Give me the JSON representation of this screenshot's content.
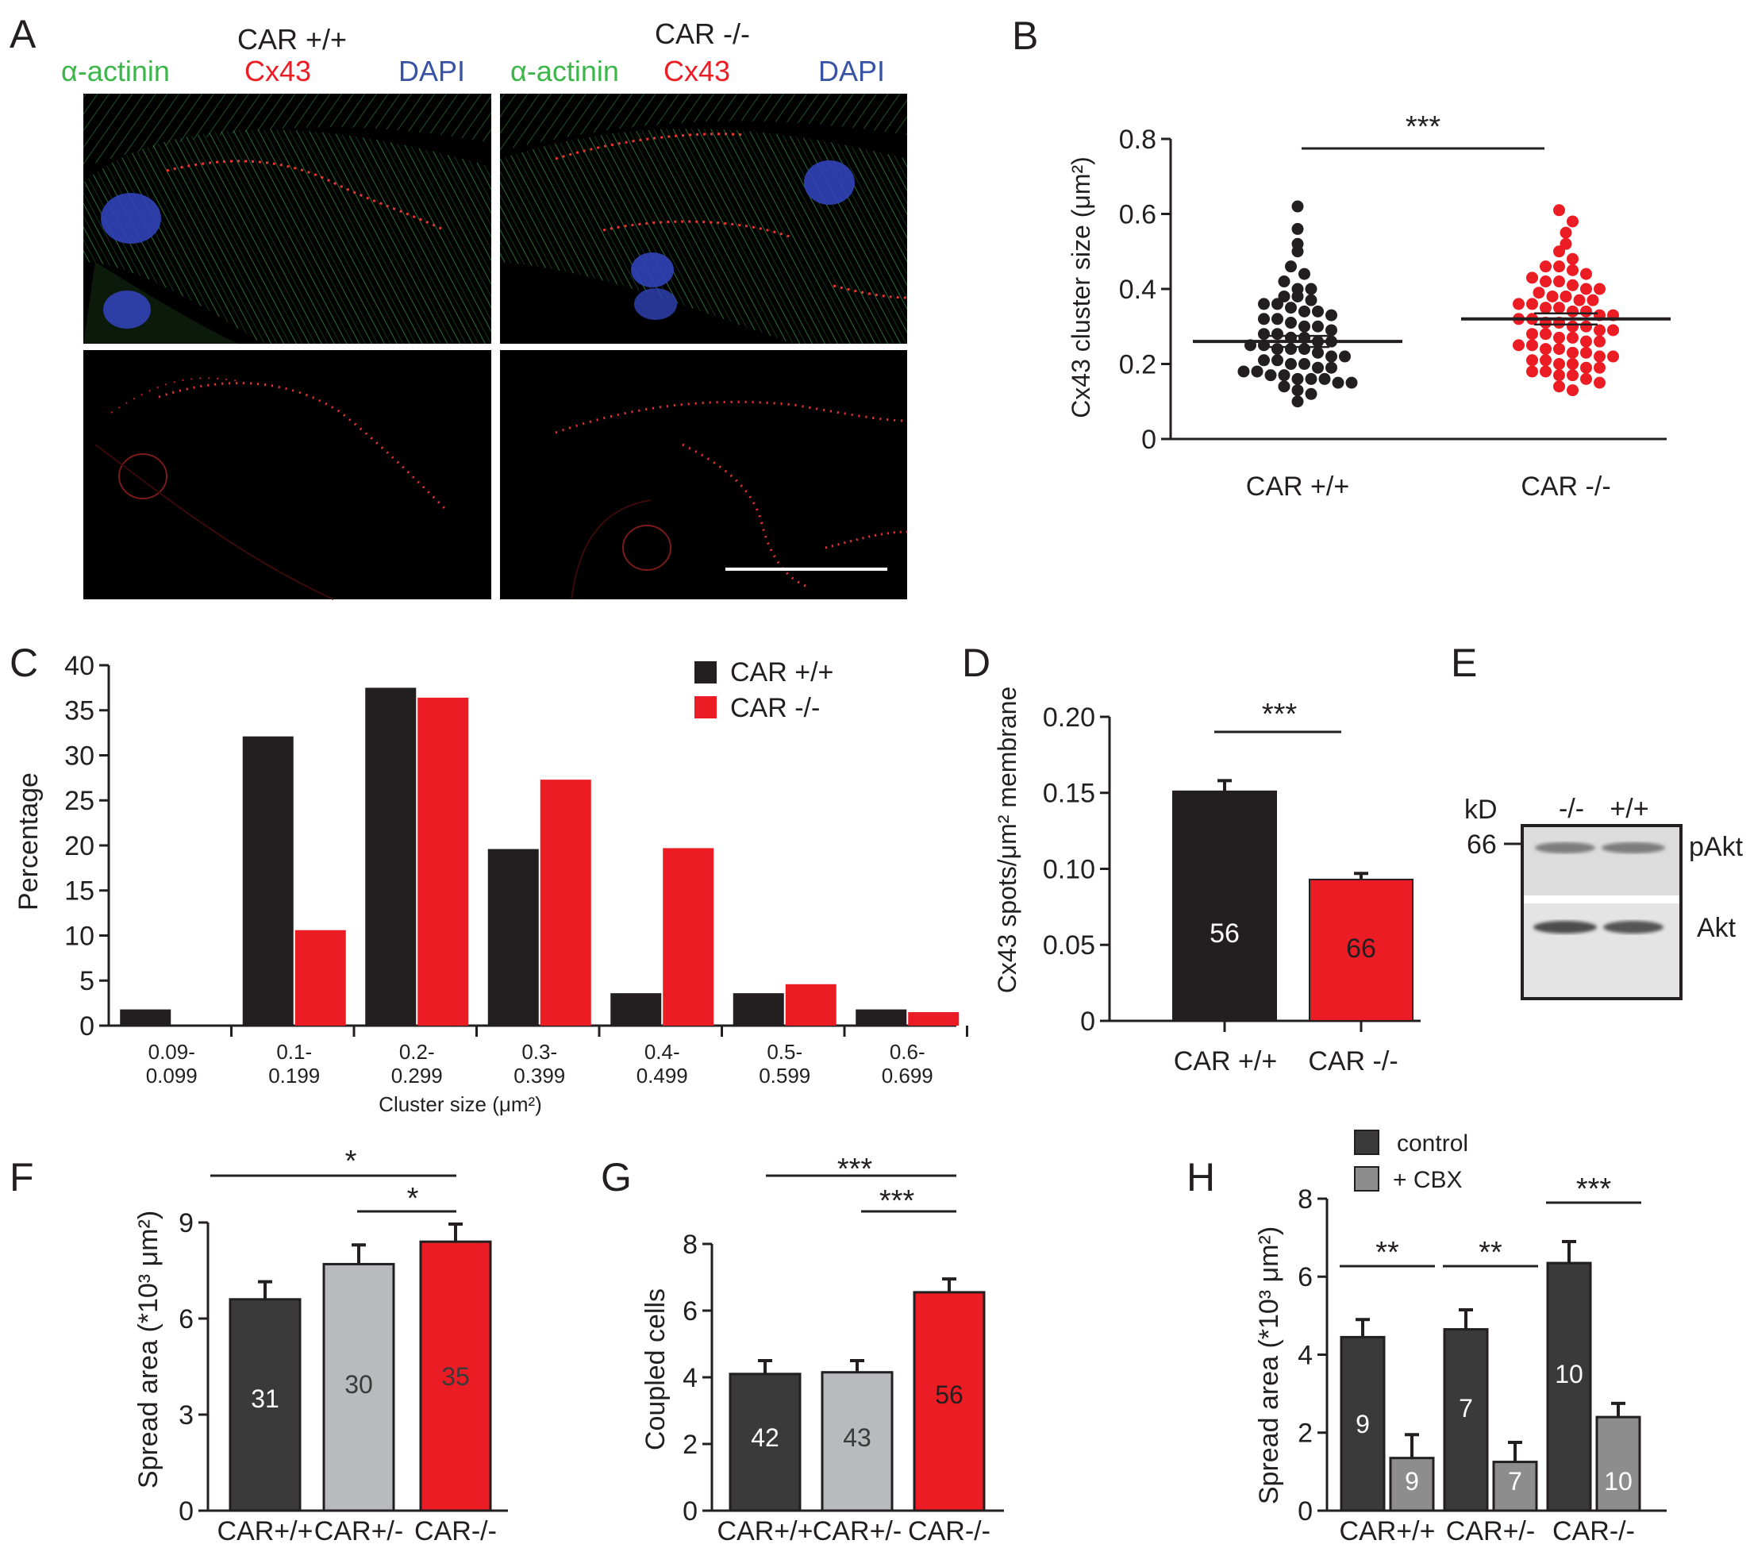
{
  "colors": {
    "black": "#231f20",
    "dark": "#3a3a3a",
    "gray": "#b9babd",
    "red": "#ec1c24",
    "green": "#3cb54a",
    "blue": "#3953a4",
    "hgray": "#8d8d8d"
  },
  "panels": {
    "A": "A",
    "B": "B",
    "C": "C",
    "D": "D",
    "E": "E",
    "F": "F",
    "G": "G",
    "H": "H"
  },
  "panelA": {
    "left_title": "CAR +/+",
    "right_title": "CAR -/-",
    "stain_green": "α-actinin",
    "stain_red": "Cx43",
    "stain_blue": "DAPI"
  },
  "chart_data": [
    {
      "panel": "B",
      "type": "scatter",
      "ylabel": "Cx43 cluster size (μm²)",
      "ylim": [
        0,
        0.8
      ],
      "yticks": [
        "0",
        "0.2",
        "0.4",
        "0.6",
        "0.8"
      ],
      "categories": [
        "CAR +/+",
        "CAR -/-"
      ],
      "means": [
        0.26,
        0.32
      ],
      "sig": "***",
      "series": [
        {
          "name": "CAR +/+",
          "values": [
            0.62,
            0.56,
            0.52,
            0.5,
            0.46,
            0.44,
            0.42,
            0.4,
            0.4,
            0.38,
            0.38,
            0.37,
            0.36,
            0.36,
            0.35,
            0.34,
            0.34,
            0.33,
            0.32,
            0.32,
            0.31,
            0.3,
            0.3,
            0.29,
            0.28,
            0.28,
            0.27,
            0.27,
            0.26,
            0.26,
            0.25,
            0.25,
            0.24,
            0.24,
            0.24,
            0.23,
            0.22,
            0.22,
            0.21,
            0.21,
            0.2,
            0.2,
            0.19,
            0.19,
            0.18,
            0.18,
            0.17,
            0.17,
            0.16,
            0.16,
            0.16,
            0.15,
            0.15,
            0.14,
            0.13,
            0.12,
            0.1
          ]
        },
        {
          "name": "CAR -/-",
          "values": [
            0.61,
            0.58,
            0.55,
            0.52,
            0.5,
            0.48,
            0.46,
            0.46,
            0.45,
            0.44,
            0.43,
            0.42,
            0.42,
            0.41,
            0.4,
            0.4,
            0.39,
            0.38,
            0.38,
            0.37,
            0.37,
            0.36,
            0.36,
            0.35,
            0.35,
            0.34,
            0.34,
            0.33,
            0.33,
            0.32,
            0.32,
            0.31,
            0.31,
            0.3,
            0.3,
            0.29,
            0.29,
            0.28,
            0.28,
            0.27,
            0.27,
            0.26,
            0.26,
            0.25,
            0.25,
            0.24,
            0.24,
            0.23,
            0.23,
            0.22,
            0.22,
            0.21,
            0.21,
            0.2,
            0.2,
            0.19,
            0.19,
            0.18,
            0.18,
            0.17,
            0.17,
            0.16,
            0.15,
            0.14,
            0.13
          ]
        }
      ]
    },
    {
      "panel": "C",
      "type": "bar",
      "ylabel": "Percentage",
      "xlabel": "Cluster size (μm²)",
      "ylim": [
        0,
        40
      ],
      "yticks": [
        "0",
        "5",
        "10",
        "15",
        "20",
        "25",
        "30",
        "35",
        "40"
      ],
      "categories": [
        [
          "0.09-",
          "0.099"
        ],
        [
          "0.1-",
          "0.199"
        ],
        [
          "0.2-",
          "0.299"
        ],
        [
          "0.3-",
          "0.399"
        ],
        [
          "0.4-",
          "0.499"
        ],
        [
          "0.5-",
          "0.599"
        ],
        [
          "0.6-",
          "0.699"
        ]
      ],
      "series": [
        {
          "name": "CAR +/+",
          "values": [
            1.8,
            32.1,
            37.5,
            19.6,
            3.6,
            3.6,
            1.8
          ]
        },
        {
          "name": "CAR -/-",
          "values": [
            0,
            10.6,
            36.4,
            27.3,
            19.7,
            4.6,
            1.5
          ]
        }
      ],
      "legend": "top-right"
    },
    {
      "panel": "D",
      "type": "bar",
      "ylabel": "Cx43 spots/μm² membrane",
      "ylim": [
        0,
        0.2
      ],
      "yticks": [
        "0",
        "0.05",
        "0.10",
        "0.15",
        "0.20"
      ],
      "categories": [
        "CAR +/+",
        "CAR -/-"
      ],
      "values": [
        0.151,
        0.093
      ],
      "errors": [
        0.007,
        0.004
      ],
      "n": [
        "56",
        "66"
      ],
      "sig": "***"
    },
    {
      "panel": "F",
      "type": "bar",
      "ylabel": "Spread area (*10³ μm²)",
      "ylim": [
        0,
        9
      ],
      "yticks": [
        "0",
        "3",
        "6",
        "9"
      ],
      "categories": [
        "CAR+/+",
        "CAR+/-",
        "CAR-/-"
      ],
      "values": [
        6.6,
        7.7,
        8.4
      ],
      "errors": [
        0.55,
        0.6,
        0.55
      ],
      "n": [
        "31",
        "30",
        "35"
      ],
      "sig": [
        "*",
        "*"
      ]
    },
    {
      "panel": "G",
      "type": "bar",
      "ylabel": "Coupled cells",
      "ylim": [
        0,
        8
      ],
      "yticks": [
        "0",
        "2",
        "4",
        "6",
        "8"
      ],
      "categories": [
        "CAR+/+",
        "CAR+/-",
        "CAR-/-"
      ],
      "values": [
        4.1,
        4.15,
        6.55
      ],
      "errors": [
        0.4,
        0.35,
        0.4
      ],
      "n": [
        "42",
        "43",
        "56"
      ],
      "sig": [
        "***",
        "***"
      ]
    },
    {
      "panel": "H",
      "type": "bar",
      "ylabel": "Spread area (*10³ μm²)",
      "ylim": [
        0,
        8
      ],
      "yticks": [
        "0",
        "2",
        "4",
        "6",
        "8"
      ],
      "categories": [
        "CAR+/+",
        "CAR+/-",
        "CAR-/-"
      ],
      "series": [
        {
          "name": "control",
          "values": [
            4.45,
            4.65,
            6.35
          ],
          "errors": [
            0.45,
            0.5,
            0.55
          ],
          "n": [
            "9",
            "7",
            "10"
          ]
        },
        {
          "name": "+ CBX",
          "values": [
            1.35,
            1.25,
            2.4
          ],
          "errors": [
            0.6,
            0.5,
            0.35
          ],
          "n": [
            "9",
            "7",
            "10"
          ]
        }
      ],
      "sig": [
        "**",
        "**",
        "***"
      ],
      "legend": "top"
    }
  ],
  "panelE": {
    "kd": "kD",
    "marker": "66",
    "lanes": [
      "-/-",
      "+/+"
    ],
    "bands": [
      "pAkt",
      "Akt"
    ]
  }
}
